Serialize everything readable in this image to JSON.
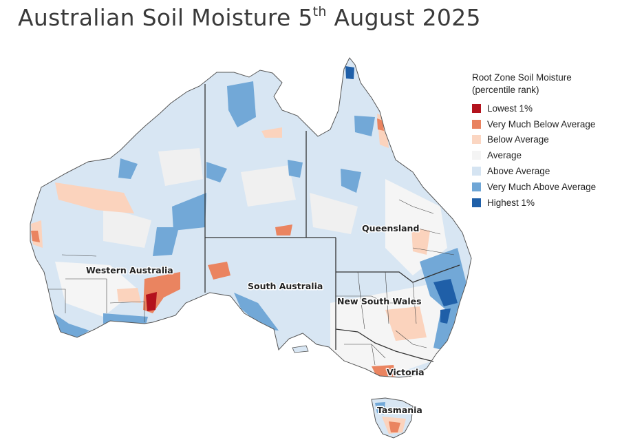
{
  "title": {
    "main": "Australian Soil Moisture 5",
    "sup": "th",
    "rest": " August 2025"
  },
  "legend": {
    "title_line1": "Root Zone Soil Moisture",
    "title_line2": "(percentile rank)",
    "items": [
      {
        "label": "Lowest 1%",
        "color": "#b3121d"
      },
      {
        "label": "Very Much Below Average",
        "color": "#e9825f"
      },
      {
        "label": "Below Average",
        "color": "#fbd6c2"
      },
      {
        "label": "Average",
        "color": "#f4f4f4"
      },
      {
        "label": "Above Average",
        "color": "#d5e4f2"
      },
      {
        "label": "Very Much Above Average",
        "color": "#6fa6d6"
      },
      {
        "label": "Highest 1%",
        "color": "#1f5fa8"
      }
    ]
  },
  "states": {
    "wa": "Western Australia",
    "sa": "South Australia",
    "qld": "Queensland",
    "nsw": "New South Wales",
    "vic": "Victoria",
    "tas": "Tasmania"
  }
}
